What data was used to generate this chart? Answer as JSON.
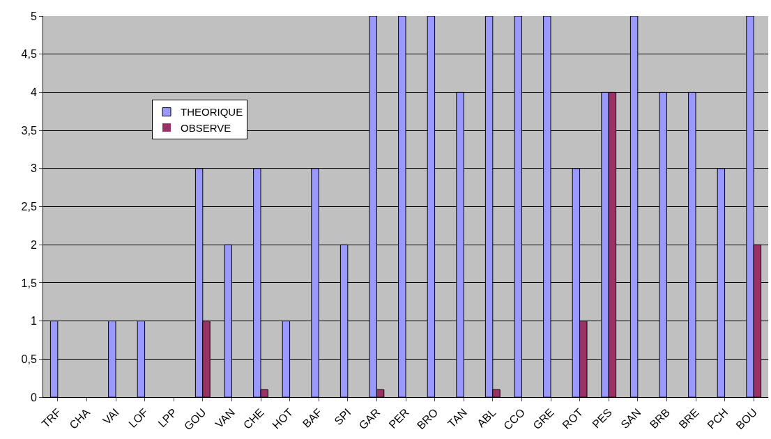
{
  "chart_data": {
    "type": "bar",
    "categories": [
      "TRF",
      "CHA",
      "VAI",
      "LOF",
      "LPP",
      "GOU",
      "VAN",
      "CHE",
      "HOT",
      "BAF",
      "SPI",
      "GAR",
      "PER",
      "BRO",
      "TAN",
      "ABL",
      "CCO",
      "GRE",
      "ROT",
      "PES",
      "SAN",
      "BRB",
      "BRE",
      "PCH",
      "BOU"
    ],
    "series": [
      {
        "name": "THEORIQUE",
        "color": "#9999ff",
        "values": [
          1,
          0,
          1,
          1,
          0,
          3,
          2,
          3,
          1,
          3,
          2,
          5,
          5,
          5,
          4,
          5,
          5,
          5,
          3,
          4,
          5,
          4,
          4,
          3,
          5
        ]
      },
      {
        "name": "OBSERVE",
        "color": "#993366",
        "values": [
          0,
          0,
          0,
          0,
          0,
          1,
          0,
          0.1,
          0,
          0,
          0,
          0.1,
          0,
          0,
          0,
          0.1,
          0,
          0,
          1,
          4,
          0,
          0,
          0,
          0,
          2
        ]
      }
    ],
    "ylim": [
      0,
      5
    ],
    "yticks": [
      0,
      {
        "value": 0.5,
        "label": "0,5"
      },
      1,
      {
        "value": 1.5,
        "label": "1,5"
      },
      2,
      {
        "value": 2.5,
        "label": "2,5"
      },
      3,
      {
        "value": 3.5,
        "label": "3,5"
      },
      4,
      {
        "value": 4.5,
        "label": "4,5"
      },
      5
    ],
    "grid": "y",
    "legend": "top left"
  }
}
